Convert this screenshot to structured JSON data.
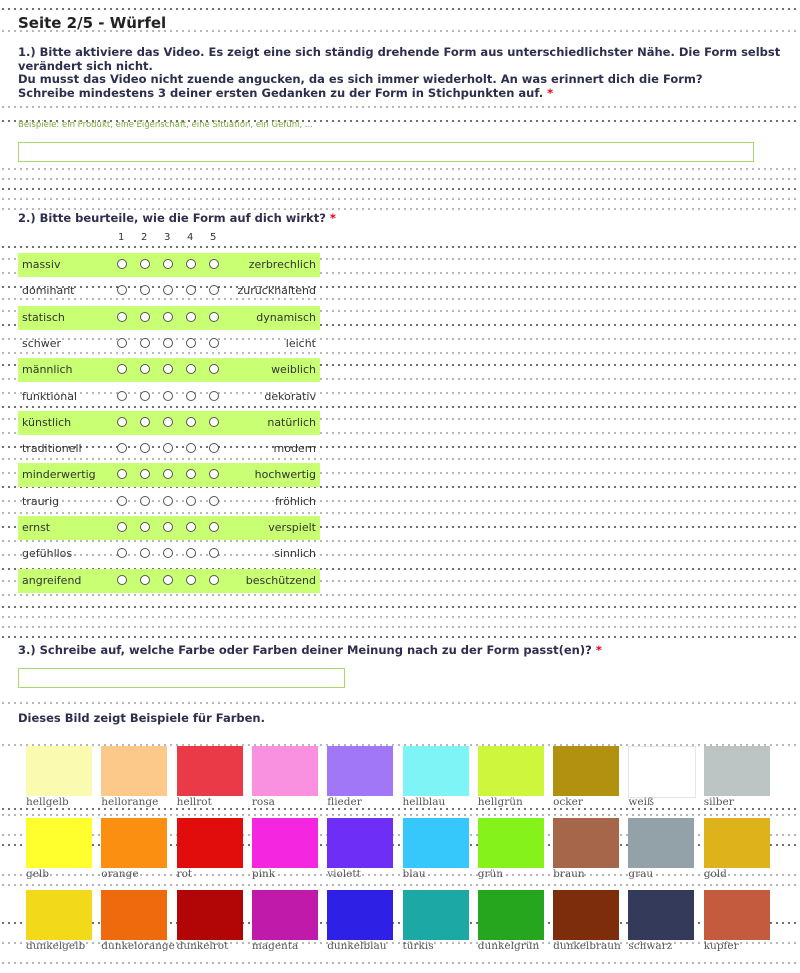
{
  "page_title": "Seite 2/5 - Würfel",
  "q1": {
    "line1": "1.) Bitte aktiviere das Video. Es zeigt eine sich ständig drehende Form aus unterschiedlichster Nähe. Die Form selbst",
    "line2": "verändert sich nicht.",
    "line3": "Du musst das Video nicht zuende angucken, da es sich immer wiederholt. An was erinnert dich die Form?",
    "line4": "Schreibe mindestens 3 deiner ersten Gedanken zu der Form in Stichpunkten auf.",
    "required": "*",
    "hint": "Beispiele: ein Produkt, eine Eigenschaft, eine Situation, ein Gefühl, ...",
    "value": ""
  },
  "q2": {
    "title": "2.) Bitte beurteile, wie die Form auf dich wirkt?",
    "required": "*",
    "scale": [
      "1",
      "2",
      "3",
      "4",
      "5"
    ],
    "rows": [
      {
        "left": "massiv",
        "right": "zerbrechlich"
      },
      {
        "left": "dominant",
        "right": "zurückhaltend"
      },
      {
        "left": "statisch",
        "right": "dynamisch"
      },
      {
        "left": "schwer",
        "right": "leicht"
      },
      {
        "left": "männlich",
        "right": "weiblich"
      },
      {
        "left": "funktional",
        "right": "dekorativ"
      },
      {
        "left": "künstlich",
        "right": "natürlich"
      },
      {
        "left": "traditionell",
        "right": "modern"
      },
      {
        "left": "minderwertig",
        "right": "hochwertig"
      },
      {
        "left": "traurig",
        "right": "fröhlich"
      },
      {
        "left": "ernst",
        "right": "verspielt"
      },
      {
        "left": "gefühllos",
        "right": "sinnlich"
      },
      {
        "left": "angreifend",
        "right": "beschützend"
      }
    ]
  },
  "q3": {
    "title": "3.) Schreibe auf, welche Farbe oder Farben deiner Meinung nach zu der Form passt(en)?",
    "required": "*",
    "value": ""
  },
  "colors_caption": "Dieses Bild zeigt Beispiele für Farben.",
  "colors": [
    [
      {
        "name": "hellgelb",
        "color": "#fafab0"
      },
      {
        "name": "hellorange",
        "color": "#fdc98a"
      },
      {
        "name": "hellrot",
        "color": "#ea3a48"
      },
      {
        "name": "rosa",
        "color": "#f990e0"
      },
      {
        "name": "flieder",
        "color": "#a176f7"
      },
      {
        "name": "hellblau",
        "color": "#7ef4f6"
      },
      {
        "name": "hellgrün",
        "color": "#cdf63c"
      },
      {
        "name": "ocker",
        "color": "#b29010"
      },
      {
        "name": "weiß",
        "color": "#ffffff"
      },
      {
        "name": "silber",
        "color": "#bcc4c4"
      }
    ],
    [
      {
        "name": "gelb",
        "color": "#ffff2e"
      },
      {
        "name": "orange",
        "color": "#fb8f12"
      },
      {
        "name": "rot",
        "color": "#e10c0c"
      },
      {
        "name": "pink",
        "color": "#f526e0"
      },
      {
        "name": "violett",
        "color": "#6f2ef5"
      },
      {
        "name": "blau",
        "color": "#36c8fa"
      },
      {
        "name": "grün",
        "color": "#86f21b"
      },
      {
        "name": "braun",
        "color": "#a6664a"
      },
      {
        "name": "grau",
        "color": "#93a2a8"
      },
      {
        "name": "gold",
        "color": "#ddb21a"
      }
    ],
    [
      {
        "name": "dunkelgelb",
        "color": "#f2d91a"
      },
      {
        "name": "dunkelorange",
        "color": "#ef6a0c"
      },
      {
        "name": "dunkelrot",
        "color": "#b20606"
      },
      {
        "name": "magenta",
        "color": "#c01aaa"
      },
      {
        "name": "dunkelblau",
        "color": "#2f20e6"
      },
      {
        "name": "türkis",
        "color": "#1ca8a4"
      },
      {
        "name": "dunkelgrün",
        "color": "#26a61f"
      },
      {
        "name": "dunkelbraun",
        "color": "#7e2d0c"
      },
      {
        "name": "schwarz",
        "color": "#343a5a"
      },
      {
        "name": "kupfer",
        "color": "#c45a3e"
      }
    ]
  ]
}
